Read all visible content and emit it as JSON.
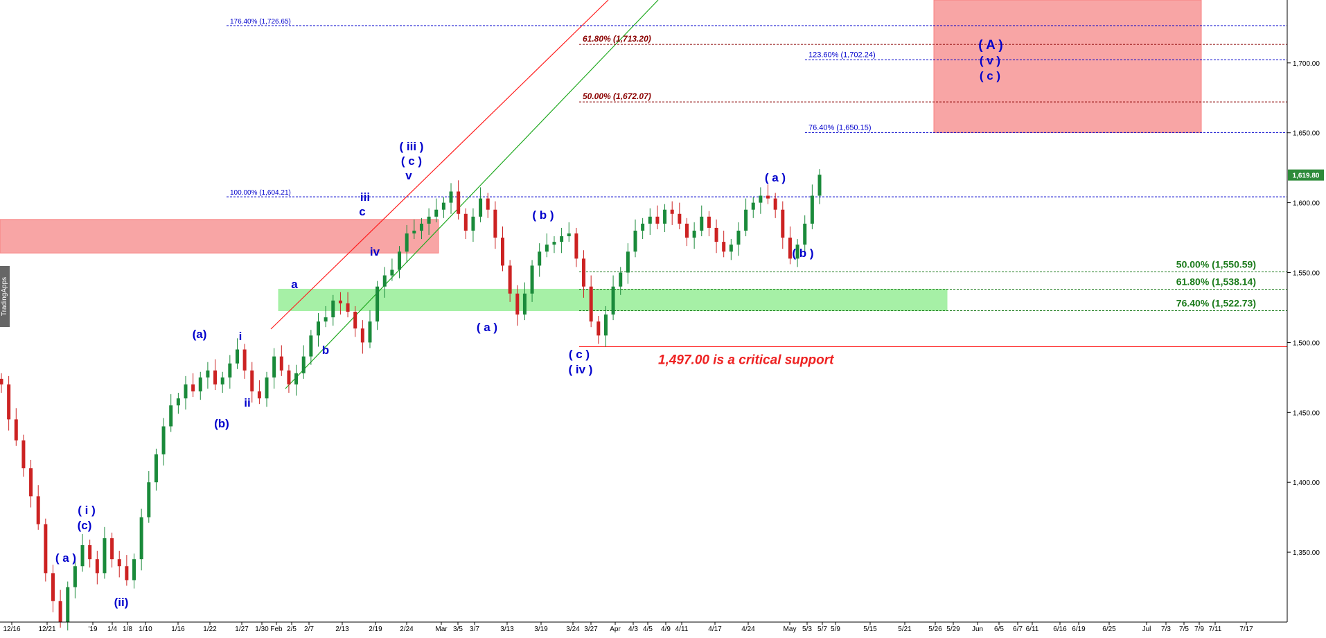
{
  "watermark": "TradingApps",
  "chart_data": {
    "type": "candlestick",
    "ylim": [
      1300,
      1745
    ],
    "yticks": [
      1350,
      1400,
      1450,
      1500,
      1550,
      1600,
      1650,
      1700
    ],
    "ytick_labels": [
      "1,350.00",
      "1,400.00",
      "1,450.00",
      "1,500.00",
      "1,550.00",
      "1,600.00",
      "1,650.00",
      "1,700.00"
    ],
    "last_price": 1619.8,
    "last_price_label": "1,619.80",
    "xtick_labels": [
      "12/16",
      "12/21",
      "'19",
      "1/4",
      "1/8",
      "1/10",
      "1/16",
      "1/22",
      "1/27",
      "1/30",
      "Feb",
      "2/5",
      "2/7",
      "2/13",
      "2/19",
      "2/24",
      "Mar",
      "3/5",
      "3/7",
      "3/13",
      "3/19",
      "3/24",
      "3/27",
      "Apr",
      "4/3",
      "4/5",
      "4/9",
      "4/11",
      "4/17",
      "4/24",
      "May",
      "5/3",
      "5/7",
      "5/9",
      "5/15",
      "5/21",
      "5/26",
      "5/29",
      "Jun",
      "6/5",
      "6/7",
      "6/11",
      "6/16",
      "6/19",
      "6/25",
      "Jul",
      "7/3",
      "7/5",
      "7/9",
      "7/11",
      "7/17"
    ],
    "price_path": [
      1470,
      1445,
      1430,
      1410,
      1390,
      1370,
      1335,
      1315,
      1300,
      1325,
      1340,
      1355,
      1345,
      1335,
      1360,
      1345,
      1340,
      1330,
      1345,
      1375,
      1400,
      1420,
      1440,
      1455,
      1460,
      1470,
      1465,
      1475,
      1480,
      1470,
      1475,
      1485,
      1495,
      1480,
      1465,
      1460,
      1475,
      1490,
      1480,
      1470,
      1478,
      1490,
      1505,
      1515,
      1518,
      1530,
      1528,
      1522,
      1510,
      1500,
      1515,
      1540,
      1548,
      1552,
      1565,
      1578,
      1580,
      1585,
      1590,
      1595,
      1600,
      1608,
      1592,
      1580,
      1590,
      1603,
      1595,
      1575,
      1555,
      1535,
      1520,
      1535,
      1555,
      1565,
      1570,
      1572,
      1576,
      1578,
      1560,
      1540,
      1515,
      1505,
      1520,
      1540,
      1550,
      1565,
      1580,
      1585,
      1590,
      1585,
      1595,
      1592,
      1585,
      1575,
      1580,
      1590,
      1582,
      1572,
      1565,
      1570,
      1580,
      1595,
      1600,
      1605,
      1603,
      1595,
      1575,
      1560,
      1570,
      1585,
      1605,
      1620
    ],
    "annotations": [
      {
        "text": "( a )",
        "color": "#0000cc",
        "bold": true
      },
      {
        "text": "( i )",
        "color": "#0000cc",
        "bold": true
      },
      {
        "text": "(c)",
        "color": "#0000cc",
        "bold": true
      },
      {
        "text": "(ii)",
        "color": "#0000cc",
        "bold": true
      },
      {
        "text": "(a)",
        "color": "#0000cc",
        "bold": true
      },
      {
        "text": "(b)",
        "color": "#0000cc",
        "bold": true
      },
      {
        "text": "i",
        "color": "#0000cc",
        "bold": true
      },
      {
        "text": "ii",
        "color": "#0000cc",
        "bold": true
      },
      {
        "text": "a",
        "color": "#0000cc",
        "bold": true
      },
      {
        "text": "b",
        "color": "#0000cc",
        "bold": true
      },
      {
        "text": "iii",
        "color": "#0000cc",
        "bold": true
      },
      {
        "text": "c",
        "color": "#0000cc",
        "bold": true
      },
      {
        "text": "iv",
        "color": "#0000cc",
        "bold": true
      },
      {
        "text": "( iii )",
        "color": "#0000cc",
        "bold": true
      },
      {
        "text": "( c )",
        "color": "#0000cc",
        "bold": true
      },
      {
        "text": "v",
        "color": "#0000cc",
        "bold": true
      },
      {
        "text": "( a )",
        "color": "#0000cc",
        "bold": true
      },
      {
        "text": "( b )",
        "color": "#0000cc",
        "bold": true
      },
      {
        "text": "( c )",
        "color": "#0000cc",
        "bold": true
      },
      {
        "text": "( iv )",
        "color": "#0000cc",
        "bold": true
      },
      {
        "text": "( a )",
        "color": "#0000cc",
        "bold": true
      },
      {
        "text": "( b )",
        "color": "#0000cc",
        "bold": true
      },
      {
        "text": "( A )",
        "color": "#0000cc",
        "bold": true
      },
      {
        "text": "( v )",
        "color": "#0000cc",
        "bold": true
      },
      {
        "text": "( c )",
        "color": "#0000cc",
        "bold": true
      }
    ],
    "fib_levels": [
      {
        "label": "176.40% (1,726.65)",
        "value": 1726.65,
        "color": "#0000cc"
      },
      {
        "label": "61.80% (1,713.20)",
        "value": 1713.2,
        "color": "#8b0000"
      },
      {
        "label": "123.60% (1,702.24)",
        "value": 1702.24,
        "color": "#0000cc"
      },
      {
        "label": "50.00% (1,672.07)",
        "value": 1672.07,
        "color": "#8b0000"
      },
      {
        "label": "76.40% (1,650.15)",
        "value": 1650.15,
        "color": "#0000cc"
      },
      {
        "label": "100.00% (1,604.21)",
        "value": 1604.21,
        "color": "#0000cc"
      },
      {
        "label": "50.00% (1,550.59)",
        "value": 1550.59,
        "color": "#1a7a1a"
      },
      {
        "label": "61.80% (1,538.14)",
        "value": 1538.14,
        "color": "#1a7a1a"
      },
      {
        "label": "76.40% (1,522.73)",
        "value": 1522.73,
        "color": "#1a7a1a"
      }
    ],
    "support_level": 1497.0,
    "support_text": "1,497.00 is a critical support",
    "zones": [
      {
        "name": "red-resistance-zone",
        "low": 1564,
        "high": 1588,
        "color": "#f8a5a5"
      },
      {
        "name": "green-support-zone",
        "low": 1522.73,
        "high": 1538.14,
        "color": "#a6f0a6"
      },
      {
        "name": "red-target-zone",
        "low": 1650.15,
        "high": 1745,
        "color": "#f8a5a5"
      }
    ],
    "colors": {
      "up": "#1a8a3a",
      "down": "#cc2222",
      "grid": "#000000",
      "axis": "#000000",
      "price_badge": "#2e8b3a"
    }
  }
}
